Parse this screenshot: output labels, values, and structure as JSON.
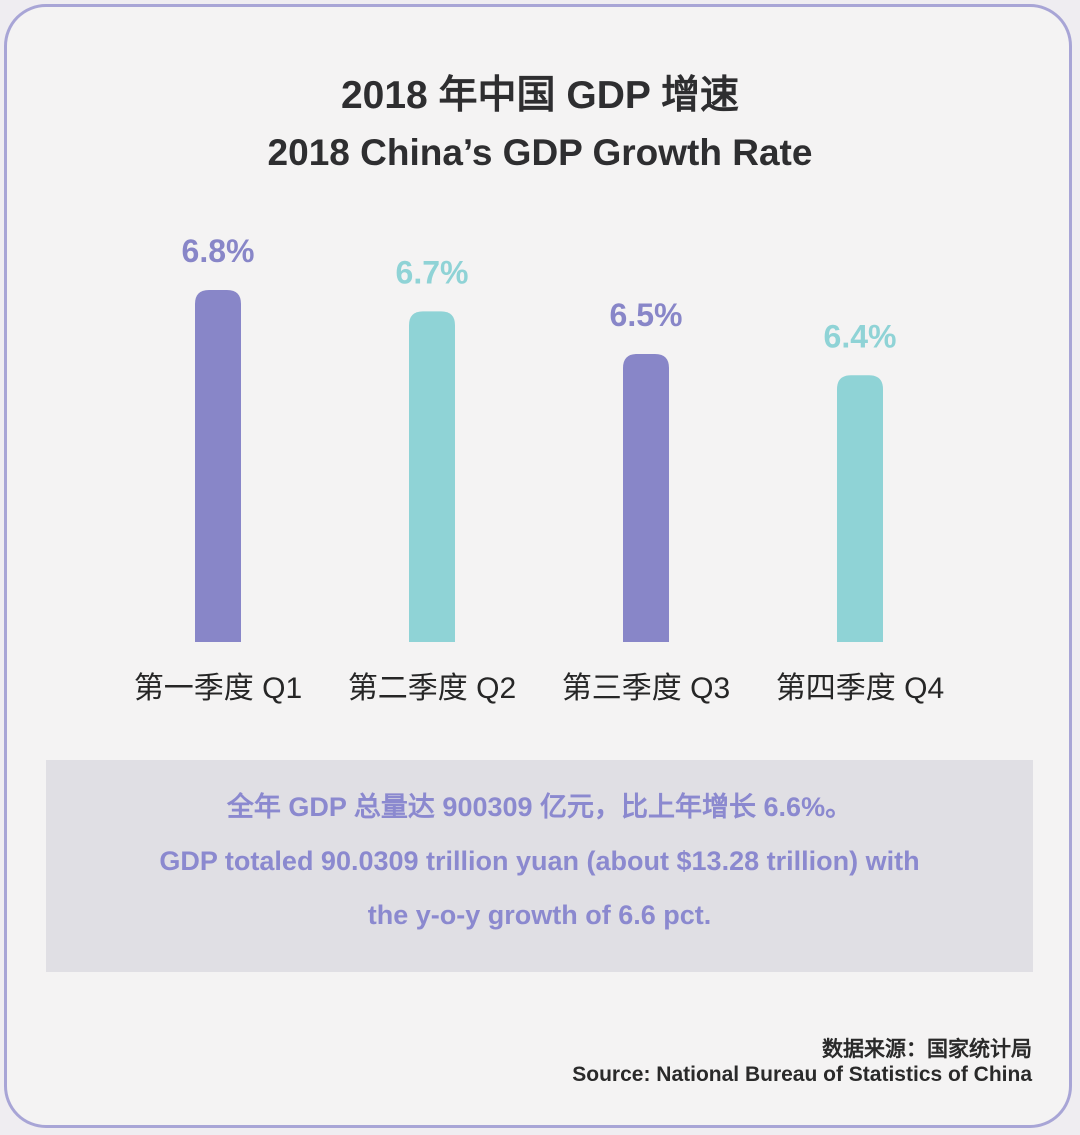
{
  "colors": {
    "purple": "#8886c8",
    "teal": "#8fd3d6",
    "border": "#a8a5d6"
  },
  "title": {
    "cn": "2018 年中国 GDP 增速",
    "en": "2018 China’s GDP Growth Rate"
  },
  "chart_data": {
    "type": "bar",
    "categories": [
      "第一季度 Q1",
      "第二季度 Q2",
      "第三季度 Q3",
      "第四季度 Q4"
    ],
    "values": [
      6.8,
      6.7,
      6.5,
      6.4
    ],
    "value_labels": [
      "6.8%",
      "6.7%",
      "6.5%",
      "6.4%"
    ],
    "bar_colors": [
      "#8886c8",
      "#8fd3d6",
      "#8886c8",
      "#8fd3d6"
    ],
    "title": "2018 China’s GDP Growth Rate",
    "xlabel": "",
    "ylabel": "",
    "grid": false
  },
  "summary": {
    "line1": "全年 GDP 总量达 900309 亿元，比上年增长 6.6%。",
    "line2": "GDP totaled 90.0309 trillion yuan (about $13.28 trillion) with",
    "line3": "the y-o-y growth of 6.6 pct."
  },
  "source": {
    "cn": "数据来源：国家统计局",
    "en": "Source:  National Bureau of Statistics of China"
  }
}
